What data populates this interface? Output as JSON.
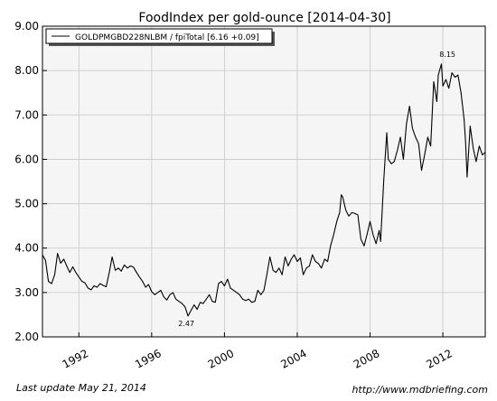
{
  "footer": {
    "last_update": "Last update May 21, 2014",
    "source": "http://www.mdbriefing.com"
  },
  "chart_data": {
    "type": "line",
    "title": "FoodIndex per gold-ounce  [2014-04-30]",
    "xlabel": "",
    "ylabel": "",
    "xlim": [
      1990.0,
      2014.33
    ],
    "ylim": [
      2.0,
      9.0
    ],
    "x_ticks": [
      1992,
      1996,
      2000,
      2004,
      2008,
      2012
    ],
    "x_tick_labels": [
      "1992",
      "1996",
      "2000",
      "2004",
      "2008",
      "2012"
    ],
    "y_ticks": [
      2.0,
      3.0,
      4.0,
      5.0,
      6.0,
      7.0,
      8.0,
      9.0
    ],
    "y_tick_labels": [
      "2.00",
      "3.00",
      "4.00",
      "5.00",
      "6.00",
      "7.00",
      "8.00",
      "9.00"
    ],
    "grid": true,
    "legend_position": "top-left",
    "colors": {
      "line": "#000000",
      "plot_background": "#f5f5f5",
      "grid": "#c8c8c8"
    },
    "annotations": [
      {
        "text": "8.15",
        "x": 2012.25,
        "y": 8.15
      },
      {
        "text": "2.47",
        "x": 1997.9,
        "y": 2.47
      }
    ],
    "series": [
      {
        "name": "GOLDPMGBD228NLBM / fpiTotal [6.16 +0.09]",
        "points": [
          [
            1990.0,
            3.85
          ],
          [
            1990.17,
            3.72
          ],
          [
            1990.33,
            3.25
          ],
          [
            1990.5,
            3.2
          ],
          [
            1990.67,
            3.4
          ],
          [
            1990.83,
            3.88
          ],
          [
            1991.0,
            3.66
          ],
          [
            1991.17,
            3.75
          ],
          [
            1991.33,
            3.6
          ],
          [
            1991.5,
            3.45
          ],
          [
            1991.67,
            3.58
          ],
          [
            1991.83,
            3.45
          ],
          [
            1992.0,
            3.35
          ],
          [
            1992.17,
            3.25
          ],
          [
            1992.33,
            3.22
          ],
          [
            1992.5,
            3.1
          ],
          [
            1992.67,
            3.06
          ],
          [
            1992.83,
            3.15
          ],
          [
            1993.0,
            3.12
          ],
          [
            1993.17,
            3.2
          ],
          [
            1993.33,
            3.16
          ],
          [
            1993.5,
            3.13
          ],
          [
            1993.67,
            3.45
          ],
          [
            1993.83,
            3.8
          ],
          [
            1994.0,
            3.5
          ],
          [
            1994.17,
            3.55
          ],
          [
            1994.33,
            3.48
          ],
          [
            1994.5,
            3.62
          ],
          [
            1994.67,
            3.55
          ],
          [
            1994.83,
            3.6
          ],
          [
            1995.0,
            3.57
          ],
          [
            1995.17,
            3.45
          ],
          [
            1995.33,
            3.35
          ],
          [
            1995.5,
            3.25
          ],
          [
            1995.67,
            3.12
          ],
          [
            1995.83,
            3.18
          ],
          [
            1996.0,
            3.02
          ],
          [
            1996.17,
            2.95
          ],
          [
            1996.33,
            3.0
          ],
          [
            1996.5,
            3.05
          ],
          [
            1996.67,
            2.9
          ],
          [
            1996.83,
            2.83
          ],
          [
            1997.0,
            2.95
          ],
          [
            1997.17,
            3.0
          ],
          [
            1997.33,
            2.85
          ],
          [
            1997.5,
            2.8
          ],
          [
            1997.67,
            2.75
          ],
          [
            1997.83,
            2.68
          ],
          [
            1998.0,
            2.47
          ],
          [
            1998.17,
            2.6
          ],
          [
            1998.33,
            2.72
          ],
          [
            1998.5,
            2.62
          ],
          [
            1998.67,
            2.78
          ],
          [
            1998.83,
            2.75
          ],
          [
            1999.0,
            2.85
          ],
          [
            1999.17,
            2.95
          ],
          [
            1999.33,
            2.8
          ],
          [
            1999.5,
            2.78
          ],
          [
            1999.67,
            3.2
          ],
          [
            1999.83,
            3.25
          ],
          [
            2000.0,
            3.15
          ],
          [
            2000.17,
            3.3
          ],
          [
            2000.33,
            3.1
          ],
          [
            2000.5,
            3.05
          ],
          [
            2000.67,
            3.0
          ],
          [
            2000.83,
            2.95
          ],
          [
            2001.0,
            2.85
          ],
          [
            2001.17,
            2.82
          ],
          [
            2001.33,
            2.85
          ],
          [
            2001.5,
            2.78
          ],
          [
            2001.67,
            2.8
          ],
          [
            2001.83,
            3.05
          ],
          [
            2002.0,
            2.95
          ],
          [
            2002.17,
            3.05
          ],
          [
            2002.33,
            3.4
          ],
          [
            2002.5,
            3.8
          ],
          [
            2002.67,
            3.5
          ],
          [
            2002.83,
            3.45
          ],
          [
            2003.0,
            3.55
          ],
          [
            2003.17,
            3.4
          ],
          [
            2003.33,
            3.8
          ],
          [
            2003.5,
            3.6
          ],
          [
            2003.67,
            3.75
          ],
          [
            2003.83,
            3.85
          ],
          [
            2004.0,
            3.7
          ],
          [
            2004.17,
            3.78
          ],
          [
            2004.33,
            3.4
          ],
          [
            2004.5,
            3.55
          ],
          [
            2004.67,
            3.6
          ],
          [
            2004.83,
            3.85
          ],
          [
            2005.0,
            3.7
          ],
          [
            2005.17,
            3.65
          ],
          [
            2005.33,
            3.55
          ],
          [
            2005.5,
            3.75
          ],
          [
            2005.67,
            3.7
          ],
          [
            2005.83,
            4.05
          ],
          [
            2006.0,
            4.3
          ],
          [
            2006.17,
            4.6
          ],
          [
            2006.33,
            4.8
          ],
          [
            2006.42,
            5.2
          ],
          [
            2006.5,
            5.15
          ],
          [
            2006.67,
            4.85
          ],
          [
            2006.83,
            4.72
          ],
          [
            2007.0,
            4.8
          ],
          [
            2007.17,
            4.78
          ],
          [
            2007.33,
            4.75
          ],
          [
            2007.5,
            4.2
          ],
          [
            2007.67,
            4.05
          ],
          [
            2007.83,
            4.3
          ],
          [
            2008.0,
            4.6
          ],
          [
            2008.17,
            4.3
          ],
          [
            2008.33,
            4.1
          ],
          [
            2008.5,
            4.4
          ],
          [
            2008.58,
            4.15
          ],
          [
            2008.75,
            5.5
          ],
          [
            2008.92,
            6.6
          ],
          [
            2009.0,
            6.0
          ],
          [
            2009.17,
            5.9
          ],
          [
            2009.33,
            5.95
          ],
          [
            2009.5,
            6.2
          ],
          [
            2009.67,
            6.5
          ],
          [
            2009.83,
            6.0
          ],
          [
            2010.0,
            6.8
          ],
          [
            2010.17,
            7.2
          ],
          [
            2010.33,
            6.7
          ],
          [
            2010.5,
            6.5
          ],
          [
            2010.67,
            6.35
          ],
          [
            2010.83,
            5.75
          ],
          [
            2011.0,
            6.1
          ],
          [
            2011.17,
            6.5
          ],
          [
            2011.33,
            6.3
          ],
          [
            2011.5,
            7.75
          ],
          [
            2011.67,
            7.3
          ],
          [
            2011.75,
            7.9
          ],
          [
            2011.92,
            8.15
          ],
          [
            2012.0,
            7.65
          ],
          [
            2012.17,
            7.8
          ],
          [
            2012.33,
            7.6
          ],
          [
            2012.5,
            7.95
          ],
          [
            2012.67,
            7.85
          ],
          [
            2012.83,
            7.9
          ],
          [
            2013.0,
            7.5
          ],
          [
            2013.17,
            6.9
          ],
          [
            2013.25,
            6.4
          ],
          [
            2013.33,
            5.6
          ],
          [
            2013.5,
            6.75
          ],
          [
            2013.67,
            6.25
          ],
          [
            2013.83,
            5.95
          ],
          [
            2014.0,
            6.3
          ],
          [
            2014.17,
            6.1
          ],
          [
            2014.33,
            6.16
          ]
        ]
      }
    ]
  }
}
